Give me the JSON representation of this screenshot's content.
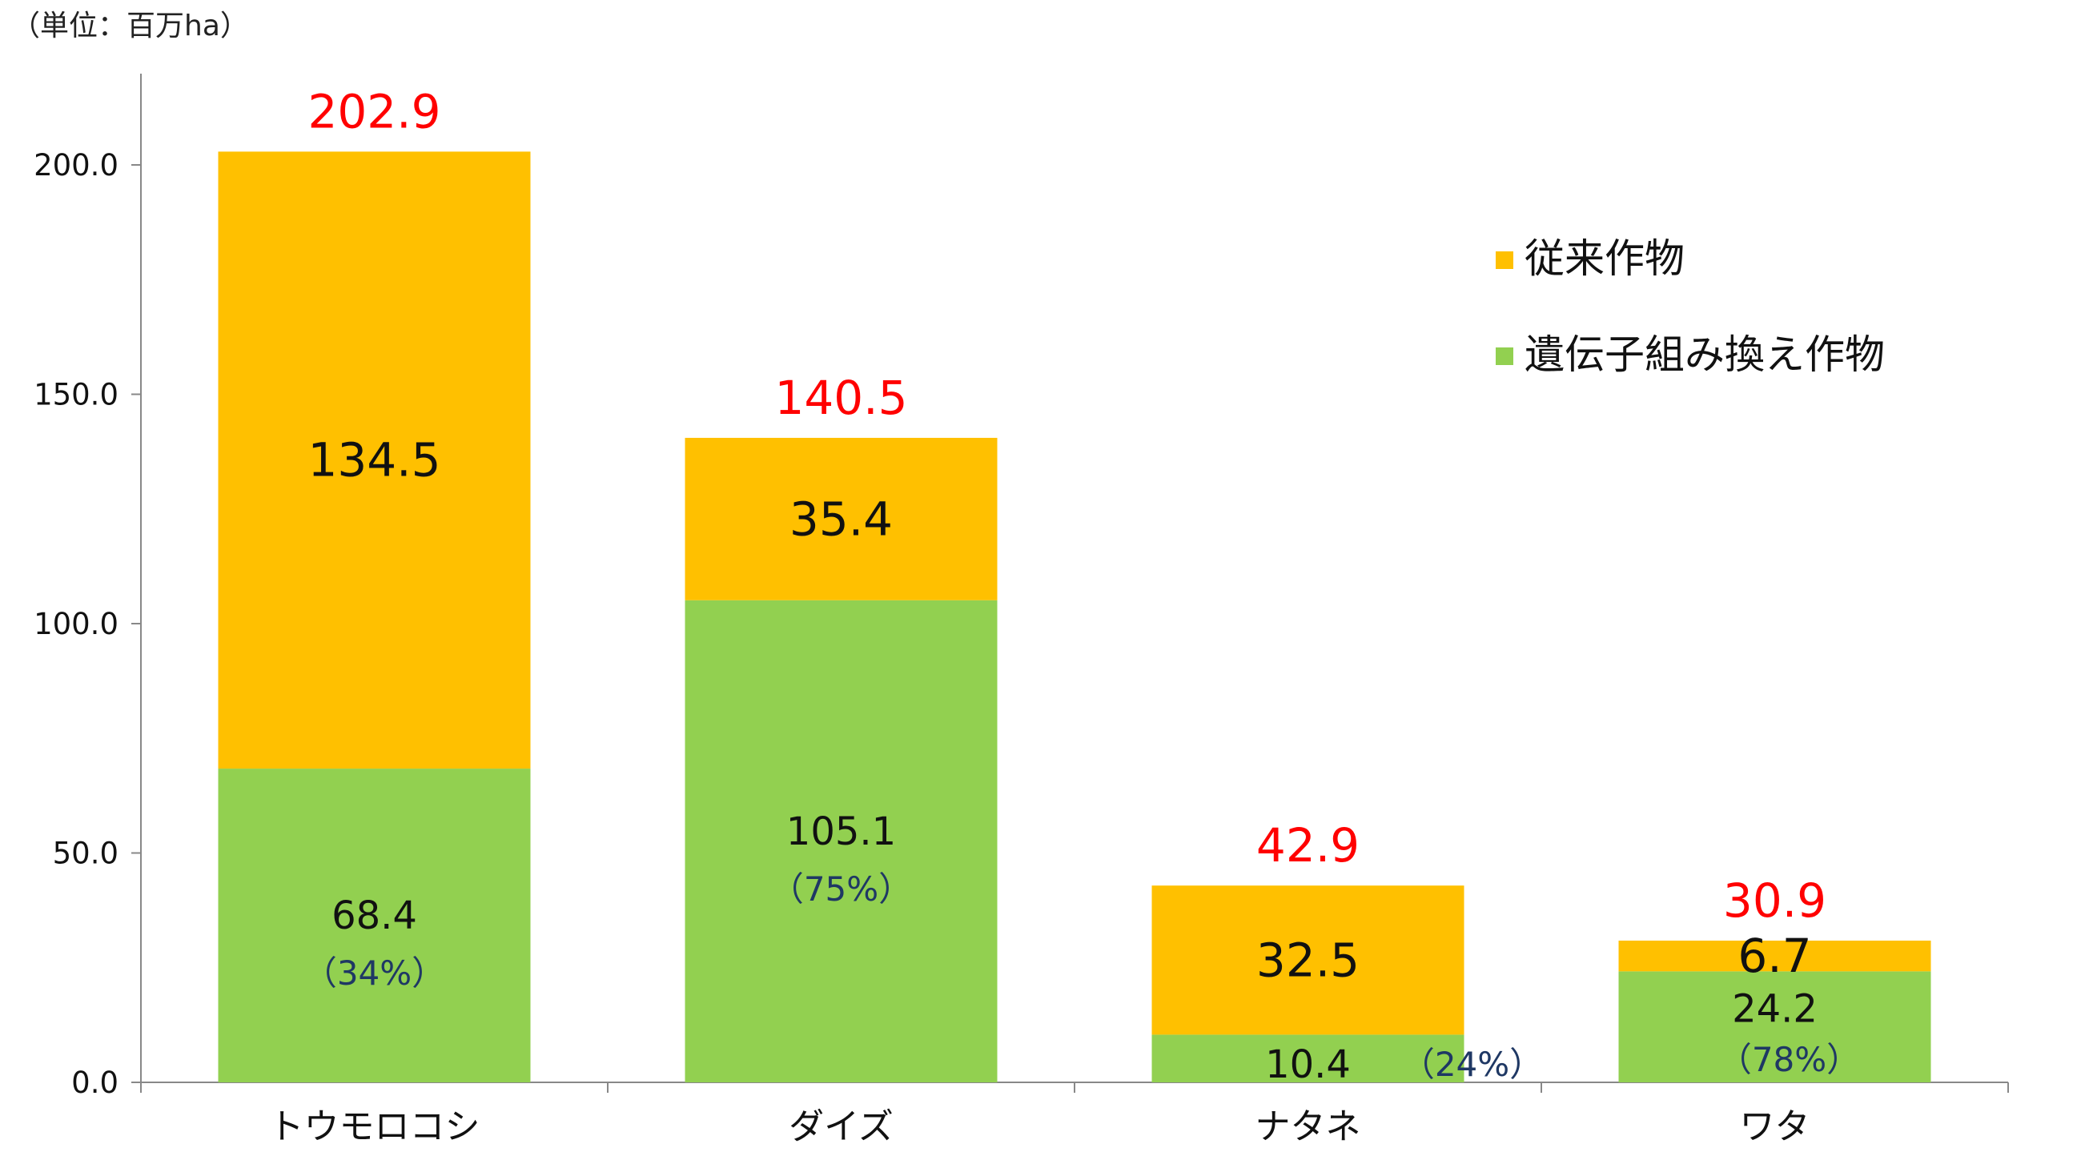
{
  "chart_data": {
    "type": "bar",
    "stacked": true,
    "unit_label": "（単位：百万ha）",
    "categories": [
      "トウモロコシ",
      "ダイズ",
      "ナタネ",
      "ワタ"
    ],
    "series": [
      {
        "name": "遺伝子組み換え作物",
        "color": "#92D050",
        "values": [
          68.4,
          105.1,
          10.4,
          24.2
        ],
        "labels": [
          "68.4",
          "105.1",
          "10.4",
          "24.2"
        ],
        "percent_labels": [
          "（34%）",
          "（75%）",
          "（24%）",
          "（78%）"
        ]
      },
      {
        "name": "従来作物",
        "color": "#FFC000",
        "values": [
          134.5,
          35.4,
          32.5,
          6.7
        ],
        "labels": [
          "134.5",
          "35.4",
          "32.5",
          "6.7"
        ]
      }
    ],
    "totals": [
      202.9,
      140.5,
      42.9,
      30.9
    ],
    "total_labels": [
      "202.9",
      "140.5",
      "42.9",
      "30.9"
    ],
    "ylim": [
      0,
      220
    ],
    "yticks": [
      0,
      50,
      100,
      150,
      200
    ],
    "ytick_labels": [
      "0.0",
      "50.0",
      "100.0",
      "150.0",
      "200.0"
    ],
    "grid": false,
    "legend_position": "top-right",
    "legend_order": [
      "従来作物",
      "遺伝子組み換え作物"
    ],
    "total_color": "#FF0000",
    "percent_color": "#1F3864",
    "axis_color": "#888888"
  }
}
